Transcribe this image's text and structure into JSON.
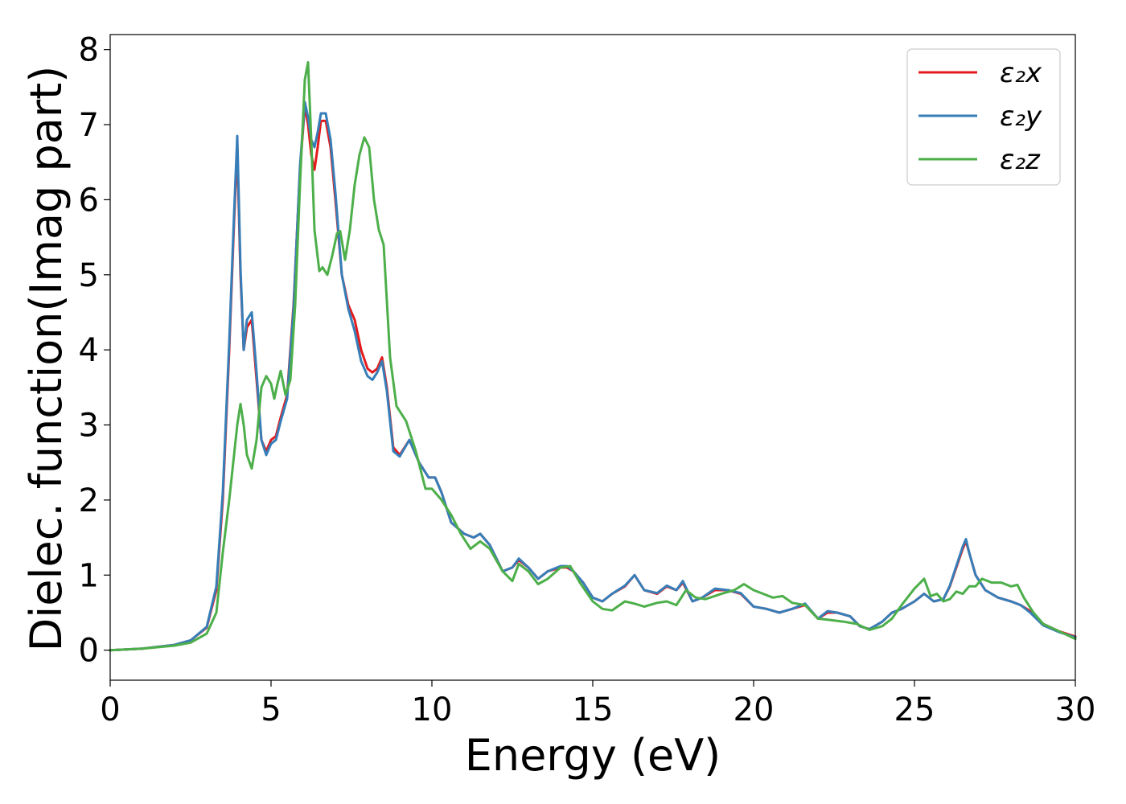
{
  "chart_data": {
    "type": "line",
    "xlabel": "Energy (eV)",
    "ylabel": "Dielec. function(Imag part)",
    "xlim": [
      0,
      30
    ],
    "ylim": [
      -0.4,
      8.2
    ],
    "xticks": [
      "0",
      "5",
      "10",
      "15",
      "20",
      "25",
      "30"
    ],
    "yticks": [
      "0",
      "1",
      "2",
      "3",
      "4",
      "5",
      "6",
      "7",
      "8"
    ],
    "grid": false,
    "legend_position": "top-right",
    "series": [
      {
        "name": "ε₂x",
        "color": "#e41a1c",
        "x": [
          0,
          1,
          2,
          2.5,
          3,
          3.3,
          3.5,
          3.7,
          3.85,
          3.95,
          4.05,
          4.15,
          4.25,
          4.4,
          4.55,
          4.7,
          4.85,
          5.0,
          5.15,
          5.3,
          5.5,
          5.7,
          5.9,
          6.05,
          6.15,
          6.25,
          6.35,
          6.45,
          6.55,
          6.7,
          6.85,
          7.0,
          7.2,
          7.4,
          7.6,
          7.8,
          8.0,
          8.15,
          8.3,
          8.45,
          8.6,
          8.8,
          9.0,
          9.3,
          9.6,
          9.9,
          10.1,
          10.3,
          10.6,
          11.0,
          11.3,
          11.5,
          11.8,
          12.2,
          12.5,
          12.7,
          13.0,
          13.3,
          13.6,
          14.0,
          14.2,
          14.4,
          14.7,
          15.0,
          15.3,
          15.6,
          16.0,
          16.3,
          16.6,
          17.0,
          17.3,
          17.6,
          17.8,
          18.1,
          18.4,
          18.8,
          19.2,
          19.6,
          20.0,
          20.4,
          20.8,
          21.2,
          21.6,
          22.0,
          22.3,
          22.6,
          23.0,
          23.3,
          23.6,
          24.0,
          24.3,
          24.6,
          25.0,
          25.3,
          25.6,
          25.9,
          26.1,
          26.3,
          26.5,
          26.6,
          26.7,
          26.9,
          27.2,
          27.6,
          28.0,
          28.3,
          28.6,
          29.0,
          29.5,
          30.0
        ],
        "values": [
          0.0,
          0.02,
          0.07,
          0.13,
          0.3,
          0.8,
          2.0,
          4.0,
          5.7,
          6.7,
          5.0,
          4.0,
          4.3,
          4.4,
          3.6,
          2.8,
          2.65,
          2.8,
          2.85,
          3.1,
          3.4,
          4.6,
          6.4,
          7.25,
          7.0,
          6.6,
          6.4,
          6.7,
          7.05,
          7.05,
          6.7,
          6.0,
          5.0,
          4.6,
          4.4,
          4.0,
          3.75,
          3.7,
          3.75,
          3.9,
          3.5,
          2.7,
          2.6,
          2.8,
          2.5,
          2.3,
          2.3,
          2.1,
          1.7,
          1.55,
          1.5,
          1.55,
          1.4,
          1.05,
          1.1,
          1.2,
          1.1,
          0.95,
          1.05,
          1.1,
          1.1,
          1.05,
          0.9,
          0.7,
          0.65,
          0.75,
          0.85,
          1.0,
          0.8,
          0.75,
          0.85,
          0.8,
          0.9,
          0.65,
          0.7,
          0.8,
          0.8,
          0.75,
          0.58,
          0.55,
          0.5,
          0.55,
          0.6,
          0.42,
          0.5,
          0.5,
          0.45,
          0.32,
          0.28,
          0.38,
          0.5,
          0.55,
          0.65,
          0.75,
          0.65,
          0.68,
          0.85,
          1.1,
          1.35,
          1.45,
          1.3,
          1.0,
          0.8,
          0.7,
          0.65,
          0.6,
          0.52,
          0.35,
          0.25,
          0.18
        ]
      },
      {
        "name": "ε₂y",
        "color": "#377eb8",
        "x": [
          0,
          1,
          2,
          2.5,
          3,
          3.3,
          3.5,
          3.7,
          3.85,
          3.95,
          4.05,
          4.15,
          4.25,
          4.4,
          4.55,
          4.7,
          4.85,
          5.0,
          5.15,
          5.3,
          5.5,
          5.7,
          5.9,
          6.05,
          6.15,
          6.25,
          6.35,
          6.45,
          6.55,
          6.7,
          6.85,
          7.0,
          7.2,
          7.4,
          7.6,
          7.8,
          8.0,
          8.15,
          8.3,
          8.45,
          8.6,
          8.8,
          9.0,
          9.3,
          9.6,
          9.9,
          10.1,
          10.3,
          10.6,
          11.0,
          11.3,
          11.5,
          11.8,
          12.2,
          12.5,
          12.7,
          13.0,
          13.3,
          13.6,
          14.0,
          14.2,
          14.4,
          14.7,
          15.0,
          15.3,
          15.6,
          16.0,
          16.3,
          16.6,
          17.0,
          17.3,
          17.6,
          17.8,
          18.1,
          18.4,
          18.8,
          19.2,
          19.6,
          20.0,
          20.4,
          20.8,
          21.2,
          21.6,
          22.0,
          22.3,
          22.6,
          23.0,
          23.3,
          23.6,
          24.0,
          24.3,
          24.6,
          25.0,
          25.3,
          25.6,
          25.9,
          26.1,
          26.3,
          26.5,
          26.6,
          26.7,
          26.9,
          27.2,
          27.6,
          28.0,
          28.3,
          28.6,
          29.0,
          29.5,
          30.0
        ],
        "values": [
          0.0,
          0.02,
          0.07,
          0.13,
          0.31,
          0.85,
          2.1,
          4.1,
          5.8,
          6.85,
          5.1,
          4.0,
          4.4,
          4.5,
          3.7,
          2.8,
          2.6,
          2.75,
          2.8,
          3.05,
          3.35,
          4.55,
          6.45,
          7.3,
          7.1,
          6.8,
          6.7,
          6.9,
          7.15,
          7.15,
          6.8,
          6.1,
          5.0,
          4.55,
          4.25,
          3.85,
          3.65,
          3.6,
          3.7,
          3.85,
          3.45,
          2.65,
          2.58,
          2.8,
          2.5,
          2.3,
          2.3,
          2.1,
          1.7,
          1.55,
          1.5,
          1.55,
          1.4,
          1.05,
          1.1,
          1.22,
          1.1,
          0.95,
          1.05,
          1.12,
          1.12,
          1.05,
          0.9,
          0.7,
          0.65,
          0.75,
          0.86,
          1.0,
          0.8,
          0.76,
          0.86,
          0.8,
          0.92,
          0.65,
          0.7,
          0.82,
          0.8,
          0.76,
          0.58,
          0.55,
          0.5,
          0.55,
          0.62,
          0.42,
          0.52,
          0.5,
          0.45,
          0.32,
          0.28,
          0.38,
          0.5,
          0.55,
          0.65,
          0.75,
          0.65,
          0.68,
          0.86,
          1.12,
          1.38,
          1.48,
          1.3,
          1.0,
          0.8,
          0.7,
          0.65,
          0.6,
          0.5,
          0.33,
          0.24,
          0.17
        ]
      },
      {
        "name": "ε₂z",
        "color": "#4daf4a",
        "x": [
          0,
          1,
          2,
          2.5,
          3,
          3.3,
          3.5,
          3.7,
          3.85,
          3.95,
          4.05,
          4.15,
          4.25,
          4.4,
          4.55,
          4.7,
          4.85,
          5.0,
          5.1,
          5.2,
          5.3,
          5.45,
          5.6,
          5.75,
          5.9,
          6.05,
          6.15,
          6.25,
          6.35,
          6.5,
          6.6,
          6.75,
          6.9,
          7.05,
          7.15,
          7.3,
          7.45,
          7.6,
          7.75,
          7.9,
          8.05,
          8.2,
          8.35,
          8.5,
          8.7,
          8.9,
          9.2,
          9.5,
          9.8,
          10.0,
          10.3,
          10.6,
          10.9,
          11.2,
          11.5,
          11.8,
          12.2,
          12.5,
          12.7,
          13.0,
          13.3,
          13.6,
          14.0,
          14.3,
          14.6,
          15.0,
          15.3,
          15.6,
          16.0,
          16.3,
          16.6,
          17.0,
          17.3,
          17.6,
          17.9,
          18.2,
          18.5,
          19.0,
          19.4,
          19.7,
          20.0,
          20.3,
          20.6,
          20.9,
          21.2,
          21.6,
          22.0,
          22.4,
          22.8,
          23.2,
          23.6,
          24.0,
          24.3,
          24.6,
          25.0,
          25.3,
          25.5,
          25.7,
          25.9,
          26.1,
          26.3,
          26.5,
          26.7,
          26.9,
          27.1,
          27.4,
          27.7,
          28.0,
          28.2,
          28.4,
          28.7,
          29.0,
          29.5,
          30.0
        ],
        "values": [
          0.0,
          0.02,
          0.06,
          0.1,
          0.22,
          0.5,
          1.3,
          2.0,
          2.6,
          3.0,
          3.28,
          3.0,
          2.6,
          2.42,
          2.8,
          3.5,
          3.65,
          3.55,
          3.35,
          3.55,
          3.72,
          3.4,
          3.6,
          4.6,
          6.2,
          7.6,
          7.83,
          6.8,
          5.6,
          5.05,
          5.1,
          5.0,
          5.25,
          5.55,
          5.58,
          5.2,
          5.6,
          6.2,
          6.6,
          6.83,
          6.7,
          6.0,
          5.6,
          5.4,
          3.9,
          3.25,
          3.05,
          2.65,
          2.15,
          2.15,
          2.0,
          1.8,
          1.55,
          1.35,
          1.45,
          1.35,
          1.05,
          0.92,
          1.15,
          1.05,
          0.88,
          0.95,
          1.1,
          1.12,
          0.9,
          0.65,
          0.55,
          0.53,
          0.65,
          0.62,
          0.58,
          0.63,
          0.65,
          0.6,
          0.8,
          0.7,
          0.68,
          0.75,
          0.8,
          0.88,
          0.8,
          0.75,
          0.7,
          0.72,
          0.63,
          0.6,
          0.42,
          0.4,
          0.38,
          0.35,
          0.27,
          0.32,
          0.42,
          0.6,
          0.82,
          0.95,
          0.72,
          0.75,
          0.65,
          0.68,
          0.78,
          0.75,
          0.85,
          0.85,
          0.95,
          0.9,
          0.9,
          0.85,
          0.87,
          0.7,
          0.5,
          0.35,
          0.25,
          0.15
        ]
      }
    ]
  }
}
